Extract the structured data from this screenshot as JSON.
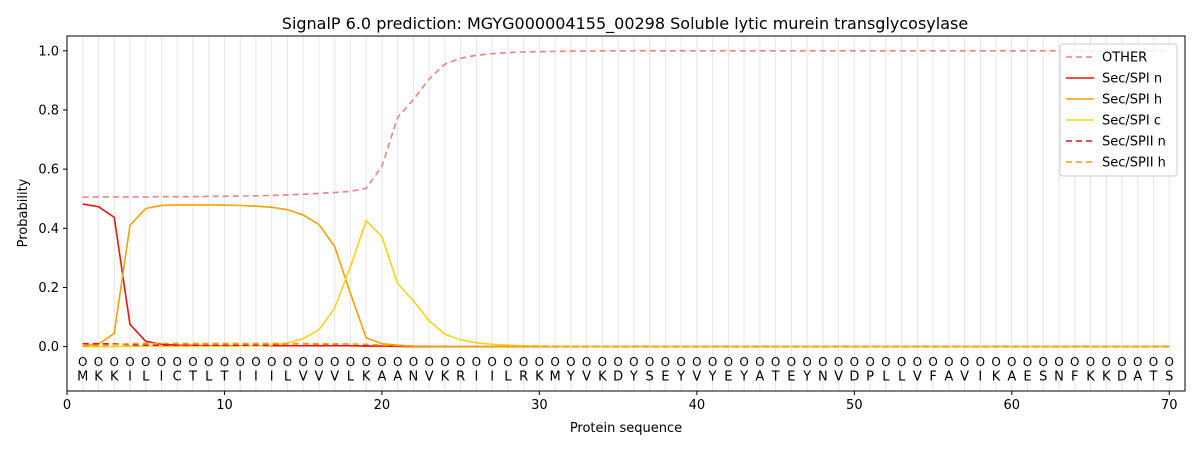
{
  "chart_data": {
    "type": "line",
    "title": "SignalP 6.0 prediction: MGYG000004155_00298 Soluble lytic murein transglycosylase",
    "xlabel": "Protein sequence",
    "ylabel": "Probability",
    "xlim": [
      0,
      71
    ],
    "ylim": [
      -0.15,
      1.05
    ],
    "xticks": [
      0,
      10,
      20,
      30,
      40,
      50,
      60,
      70
    ],
    "yticks": [
      0.0,
      0.2,
      0.4,
      0.6,
      0.8,
      1.0
    ],
    "xtick_labels": [
      "0",
      "10",
      "20",
      "30",
      "40",
      "50",
      "60",
      "70"
    ],
    "ytick_labels": [
      "0.0",
      "0.2",
      "0.4",
      "0.6",
      "0.8",
      "1.0"
    ],
    "grid": "vertical lines at each residue",
    "legend_position": "top-right",
    "sequence": [
      "M",
      "K",
      "K",
      "I",
      "L",
      "I",
      "C",
      "T",
      "L",
      "T",
      "I",
      "I",
      "I",
      "L",
      "V",
      "V",
      "V",
      "L",
      "K",
      "A",
      "A",
      "N",
      "V",
      "K",
      "R",
      "I",
      "I",
      "L",
      "R",
      "K",
      "M",
      "Y",
      "V",
      "K",
      "D",
      "Y",
      "S",
      "E",
      "Y",
      "V",
      "Y",
      "E",
      "Y",
      "A",
      "T",
      "E",
      "Y",
      "N",
      "V",
      "D",
      "P",
      "L",
      "L",
      "V",
      "F",
      "A",
      "V",
      "I",
      "K",
      "A",
      "E",
      "S",
      "N",
      "F",
      "K",
      "K",
      "D",
      "A",
      "T",
      "S"
    ],
    "region_labels": [
      "O",
      "O",
      "O",
      "O",
      "O",
      "O",
      "O",
      "O",
      "O",
      "O",
      "O",
      "O",
      "O",
      "O",
      "O",
      "O",
      "O",
      "O",
      "O",
      "O",
      "O",
      "O",
      "O",
      "O",
      "O",
      "O",
      "O",
      "O",
      "O",
      "O",
      "O",
      "O",
      "O",
      "O",
      "O",
      "O",
      "O",
      "O",
      "O",
      "O",
      "O",
      "O",
      "O",
      "O",
      "O",
      "O",
      "O",
      "O",
      "O",
      "O",
      "O",
      "O",
      "O",
      "O",
      "O",
      "O",
      "O",
      "O",
      "O",
      "O",
      "O",
      "O",
      "O",
      "O",
      "O",
      "O",
      "O",
      "O",
      "O",
      "O"
    ],
    "x": [
      1,
      2,
      3,
      4,
      5,
      6,
      7,
      8,
      9,
      10,
      11,
      12,
      13,
      14,
      15,
      16,
      17,
      18,
      19,
      20,
      21,
      22,
      23,
      24,
      25,
      26,
      27,
      28,
      29,
      30,
      31,
      32,
      33,
      34,
      35,
      36,
      37,
      38,
      39,
      40,
      41,
      42,
      43,
      44,
      45,
      46,
      47,
      48,
      49,
      50,
      51,
      52,
      53,
      54,
      55,
      56,
      57,
      58,
      59,
      60,
      61,
      62,
      63,
      64,
      65,
      66,
      67,
      68,
      69,
      70
    ],
    "series": [
      {
        "name": "OTHER",
        "color": "#f08080",
        "dash": "dashed",
        "values": [
          0.505,
          0.506,
          0.506,
          0.506,
          0.506,
          0.507,
          0.507,
          0.507,
          0.508,
          0.508,
          0.509,
          0.51,
          0.511,
          0.513,
          0.515,
          0.518,
          0.521,
          0.525,
          0.535,
          0.61,
          0.775,
          0.835,
          0.905,
          0.955,
          0.975,
          0.985,
          0.99,
          0.994,
          0.996,
          0.997,
          0.998,
          0.999,
          0.999,
          1.0,
          1.0,
          1.0,
          1.0,
          1.0,
          1.0,
          1.0,
          1.0,
          1.0,
          1.0,
          1.0,
          1.0,
          1.0,
          1.0,
          1.0,
          1.0,
          1.0,
          1.0,
          1.0,
          1.0,
          1.0,
          1.0,
          1.0,
          1.0,
          1.0,
          1.0,
          1.0,
          1.0,
          1.0,
          1.0,
          1.0,
          1.0,
          1.0,
          1.0,
          1.0,
          1.0,
          1.0
        ]
      },
      {
        "name": "Sec/SPI n",
        "color": "#ee1111",
        "dash": "solid",
        "values": [
          0.482,
          0.473,
          0.437,
          0.075,
          0.018,
          0.008,
          0.005,
          0.004,
          0.003,
          0.003,
          0.003,
          0.003,
          0.003,
          0.003,
          0.003,
          0.003,
          0.003,
          0.003,
          0.002,
          0.002,
          0.001,
          0.0,
          0.0,
          0.0,
          0.0,
          0.0,
          0.0,
          0.0,
          0.0,
          0.0,
          0.0,
          0.0,
          0.0,
          0.0,
          0.0,
          0.0,
          0.0,
          0.0,
          0.0,
          0.0,
          0.0,
          0.0,
          0.0,
          0.0,
          0.0,
          0.0,
          0.0,
          0.0,
          0.0,
          0.0,
          0.0,
          0.0,
          0.0,
          0.0,
          0.0,
          0.0,
          0.0,
          0.0,
          0.0,
          0.0,
          0.0,
          0.0,
          0.0,
          0.0,
          0.0,
          0.0,
          0.0,
          0.0,
          0.0,
          0.0
        ]
      },
      {
        "name": "Sec/SPI h",
        "color": "#f5a100",
        "dash": "solid",
        "values": [
          0.003,
          0.008,
          0.045,
          0.41,
          0.467,
          0.477,
          0.479,
          0.479,
          0.479,
          0.478,
          0.477,
          0.475,
          0.471,
          0.463,
          0.445,
          0.413,
          0.338,
          0.18,
          0.03,
          0.01,
          0.005,
          0.002,
          0.001,
          0.0,
          0.0,
          0.0,
          0.0,
          0.0,
          0.0,
          0.0,
          0.0,
          0.0,
          0.0,
          0.0,
          0.0,
          0.0,
          0.0,
          0.0,
          0.0,
          0.0,
          0.0,
          0.0,
          0.0,
          0.0,
          0.0,
          0.0,
          0.0,
          0.0,
          0.0,
          0.0,
          0.0,
          0.0,
          0.0,
          0.0,
          0.0,
          0.0,
          0.0,
          0.0,
          0.0,
          0.0,
          0.0,
          0.0,
          0.0,
          0.0,
          0.0,
          0.0,
          0.0,
          0.0,
          0.0,
          0.0
        ]
      },
      {
        "name": "Sec/SPI c",
        "color": "#fdd117",
        "dash": "solid",
        "values": [
          0.0,
          0.0,
          0.0,
          0.001,
          0.001,
          0.001,
          0.001,
          0.001,
          0.001,
          0.001,
          0.002,
          0.003,
          0.005,
          0.012,
          0.027,
          0.057,
          0.13,
          0.27,
          0.425,
          0.372,
          0.213,
          0.155,
          0.087,
          0.042,
          0.023,
          0.013,
          0.008,
          0.005,
          0.003,
          0.002,
          0.001,
          0.001,
          0.0,
          0.0,
          0.0,
          0.0,
          0.0,
          0.0,
          0.0,
          0.0,
          0.0,
          0.0,
          0.0,
          0.0,
          0.0,
          0.0,
          0.0,
          0.0,
          0.0,
          0.0,
          0.0,
          0.0,
          0.0,
          0.0,
          0.0,
          0.0,
          0.0,
          0.0,
          0.0,
          0.0,
          0.0,
          0.0,
          0.0,
          0.0,
          0.0,
          0.0,
          0.0,
          0.0,
          0.0,
          0.0
        ]
      },
      {
        "name": "Sec/SPII n",
        "color": "#ee1111",
        "dash": "dashed",
        "values": [
          0.01,
          0.01,
          0.009,
          0.006,
          0.005,
          0.005,
          0.005,
          0.005,
          0.005,
          0.005,
          0.005,
          0.005,
          0.005,
          0.004,
          0.004,
          0.004,
          0.004,
          0.003,
          0.003,
          0.002,
          0.001,
          0.0,
          0.0,
          0.0,
          0.0,
          0.0,
          0.0,
          0.0,
          0.0,
          0.0,
          0.0,
          0.0,
          0.0,
          0.0,
          0.0,
          0.0,
          0.0,
          0.0,
          0.0,
          0.0,
          0.0,
          0.0,
          0.0,
          0.0,
          0.0,
          0.0,
          0.0,
          0.0,
          0.0,
          0.0,
          0.0,
          0.0,
          0.0,
          0.0,
          0.0,
          0.0,
          0.0,
          0.0,
          0.0,
          0.0,
          0.0,
          0.0,
          0.0,
          0.0,
          0.0,
          0.0,
          0.0,
          0.0,
          0.0,
          0.0
        ]
      },
      {
        "name": "Sec/SPII h",
        "color": "#f5a100",
        "dash": "dashed",
        "values": [
          0.002,
          0.003,
          0.006,
          0.01,
          0.011,
          0.011,
          0.011,
          0.011,
          0.011,
          0.011,
          0.011,
          0.011,
          0.011,
          0.011,
          0.011,
          0.01,
          0.01,
          0.009,
          0.008,
          0.005,
          0.003,
          0.001,
          0.0,
          0.0,
          0.0,
          0.0,
          0.0,
          0.0,
          0.0,
          0.0,
          0.0,
          0.0,
          0.0,
          0.0,
          0.0,
          0.0,
          0.0,
          0.0,
          0.0,
          0.0,
          0.0,
          0.0,
          0.0,
          0.0,
          0.0,
          0.0,
          0.0,
          0.0,
          0.0,
          0.0,
          0.0,
          0.0,
          0.0,
          0.0,
          0.0,
          0.0,
          0.0,
          0.0,
          0.0,
          0.0,
          0.0,
          0.0,
          0.0,
          0.0,
          0.0,
          0.0,
          0.0,
          0.0,
          0.0,
          0.0
        ]
      }
    ]
  }
}
